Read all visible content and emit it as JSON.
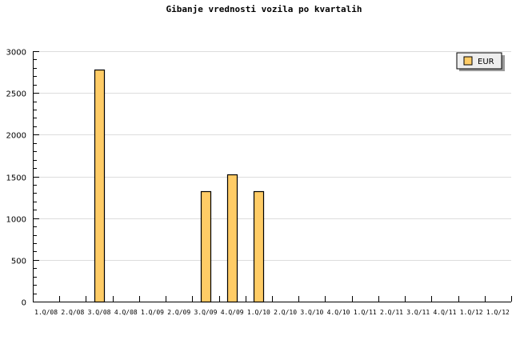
{
  "chart_data": {
    "type": "bar",
    "title": "Gibanje vrednosti vozila po kvartalih",
    "xlabel": "",
    "ylabel": "",
    "ylim": [
      0,
      3000
    ],
    "yticks": [
      "0",
      "500",
      "1000",
      "1500",
      "2000",
      "2500",
      "3000"
    ],
    "grid": true,
    "legend_position": "top-right",
    "categories": [
      "1.Q/08",
      "2.Q/08",
      "3.Q/08",
      "4.Q/08",
      "1.Q/09",
      "2.Q/09",
      "3.Q/09",
      "4.Q/09",
      "1.Q/10",
      "2.Q/10",
      "3.Q/10",
      "4.Q/10",
      "1.Q/11",
      "2.Q/11",
      "3.Q/11",
      "4.Q/11",
      "1.Q/12",
      "1.Q/12"
    ],
    "series": [
      {
        "name": "EUR",
        "color": "#ffcc66",
        "values": [
          0,
          0,
          2780,
          0,
          0,
          0,
          1320,
          1520,
          1320,
          0,
          0,
          0,
          0,
          0,
          0,
          0,
          0,
          0
        ]
      }
    ]
  }
}
